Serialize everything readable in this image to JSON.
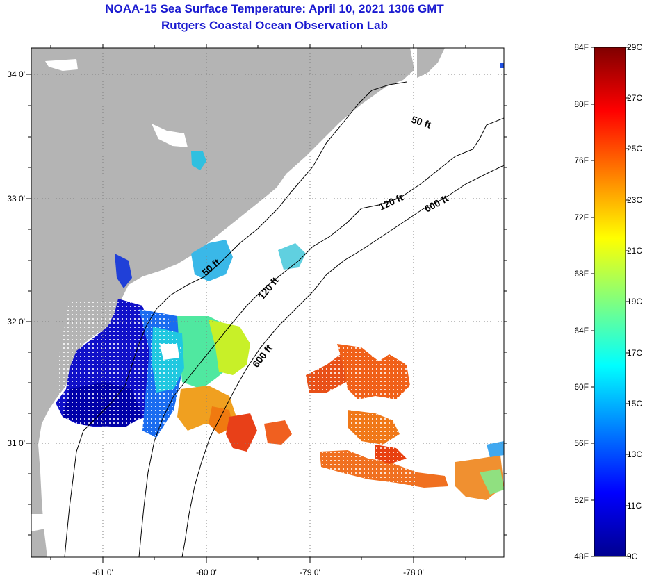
{
  "header": {
    "title": "NOAA-15 Sea Surface Temperature:  April 10, 2021 1306 GMT",
    "subtitle": "Rutgers Coastal Ocean Observation Lab"
  },
  "map": {
    "lon_ticks": [
      "-81 0'",
      "-80 0'",
      "-79 0'",
      "-78 0'"
    ],
    "lat_ticks": [
      "34 0'",
      "33 0'",
      "32 0'",
      "31 0'"
    ],
    "isobath_labels": [
      "50 ft",
      "120 ft",
      "600 ft",
      "50 ft",
      "120 ft",
      "600 ft"
    ],
    "colors": {
      "land": "#b4b4b4",
      "no_data": "#ffffff",
      "grid": "#808080"
    }
  },
  "colorbar": {
    "fahrenheit": [
      "84F",
      "80F",
      "76F",
      "72F",
      "68F",
      "64F",
      "60F",
      "56F",
      "52F",
      "48F"
    ],
    "celsius": [
      "29C",
      "27C",
      "25C",
      "23C",
      "21C",
      "19C",
      "17C",
      "15C",
      "13C",
      "11C",
      "9C"
    ]
  }
}
